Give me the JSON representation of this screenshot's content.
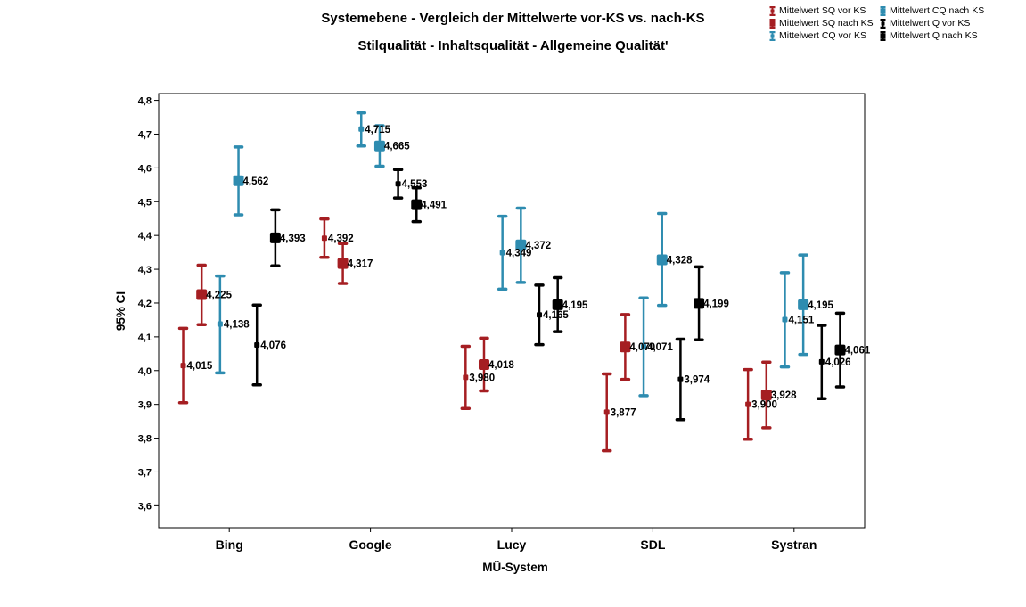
{
  "title": "Systemebene - Vergleich der Mittelwerte vor-KS vs. nach-KS",
  "subtitle": "Stilqualität - Inhaltsqualität - Allgemeine Qualität'",
  "chart_data": {
    "type": "scatter",
    "title": "Systemebene - Vergleich der Mittelwerte vor-KS vs. nach-KS",
    "subtitle": "Stilqualität - Inhaltsqualität - Allgemeine Qualität'",
    "xlabel": "MÜ-System",
    "ylabel": "95% CI",
    "categories": [
      "Bing",
      "Google",
      "Lucy",
      "SDL",
      "Systran"
    ],
    "ylim": [
      3.535,
      4.82
    ],
    "yticks": [
      "3,6",
      "3,7",
      "3,8",
      "3,9",
      "4,0",
      "4,1",
      "4,2",
      "4,3",
      "4,4",
      "4,5",
      "4,6",
      "4,7",
      "4,8"
    ],
    "legend_position": "top-right",
    "series": [
      {
        "name": "Mittelwert SQ vor KS",
        "color": "#a51e22",
        "marker": "small",
        "values": [
          4.015,
          4.392,
          3.98,
          3.877,
          3.9
        ],
        "labels": [
          "4,015",
          "4,392",
          "3,980",
          "3,877",
          "3,900"
        ],
        "lower": [
          3.905,
          4.335,
          3.888,
          3.763,
          3.797
        ],
        "upper": [
          4.125,
          4.449,
          4.072,
          3.99,
          4.003
        ]
      },
      {
        "name": "Mittelwert SQ nach KS",
        "color": "#a51e22",
        "marker": "large",
        "values": [
          4.225,
          4.317,
          4.018,
          4.07,
          3.928
        ],
        "labels": [
          "4,225",
          "4,317",
          "4,018",
          "4,070",
          "3,928"
        ],
        "lower": [
          4.136,
          4.258,
          3.94,
          3.974,
          3.831
        ],
        "upper": [
          4.312,
          4.376,
          4.096,
          4.166,
          4.025
        ]
      },
      {
        "name": "Mittelwert CQ vor KS",
        "color": "#2e8cb0",
        "marker": "small",
        "values": [
          4.138,
          4.715,
          4.349,
          4.071,
          4.151
        ],
        "labels": [
          "4,138",
          "4,715",
          "4,349",
          "4,071",
          "4,151"
        ],
        "lower": [
          3.993,
          4.665,
          4.241,
          3.926,
          4.011
        ],
        "upper": [
          4.28,
          4.763,
          4.457,
          4.215,
          4.29
        ]
      },
      {
        "name": "Mittelwert CQ nach KS",
        "color": "#2e8cb0",
        "marker": "large",
        "values": [
          4.562,
          4.665,
          4.372,
          4.328,
          4.195
        ],
        "labels": [
          "4,562",
          "4,665",
          "4,372",
          "4,328",
          "4,195"
        ],
        "lower": [
          4.461,
          4.605,
          4.261,
          4.193,
          4.048
        ],
        "upper": [
          4.662,
          4.725,
          4.481,
          4.465,
          4.342
        ]
      },
      {
        "name": "Mittelwert Q vor KS",
        "color": "#000000",
        "marker": "small",
        "values": [
          4.076,
          4.553,
          4.165,
          3.974,
          4.026
        ],
        "labels": [
          "4,076",
          "4,553",
          "4,165",
          "3,974",
          "4,026"
        ],
        "lower": [
          3.958,
          4.511,
          4.077,
          3.855,
          3.917
        ],
        "upper": [
          4.194,
          4.595,
          4.253,
          4.093,
          4.134
        ]
      },
      {
        "name": "Mittelwert Q nach KS",
        "color": "#000000",
        "marker": "large",
        "values": [
          4.393,
          4.491,
          4.195,
          4.199,
          4.061
        ],
        "labels": [
          "4,393",
          "4,491",
          "4,195",
          "4,199",
          "4,061"
        ],
        "lower": [
          4.31,
          4.441,
          4.115,
          4.091,
          3.952
        ],
        "upper": [
          4.476,
          4.541,
          4.275,
          4.307,
          4.17
        ]
      }
    ]
  }
}
